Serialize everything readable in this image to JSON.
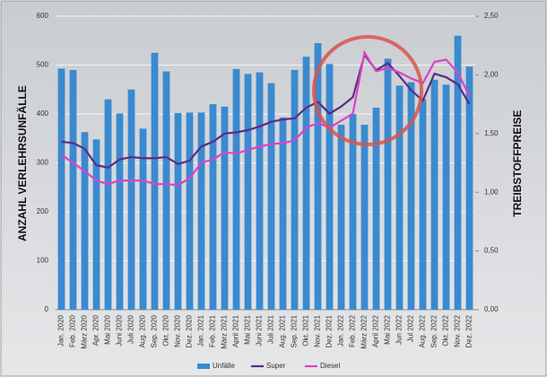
{
  "chart_data": {
    "type": "bar_line",
    "categories": [
      "Jan. 2020",
      "Feb. 2020",
      "März 2020",
      "Apr. 2020",
      "Mai 2020",
      "Juni 2020",
      "Juli 2020",
      "Aug. 2020",
      "Sep. 2020",
      "Okt. 2020",
      "Nov. 2020",
      "Dez. 2020",
      "Jan. 2021",
      "Feb. 2021",
      "März 2021",
      "April 2021",
      "Mai 2021",
      "Juni 2021",
      "Juli 2021",
      "Aug. 2021",
      "Sep. 2021",
      "Okt. 2021",
      "Nov. 2021",
      "Dez. 2021",
      "Jan. 2022",
      "Feb. 2022",
      "März 2022",
      "April 2022",
      "Mai 2022",
      "Jun 2022",
      "Jul 2022",
      "Aug. 2022",
      "Sep. 2022",
      "Okt. 2022",
      "Nov. 2022",
      "Dez. 2022"
    ],
    "series": [
      {
        "name": "Unfälle",
        "color": "#3a8ad0",
        "kind": "bar",
        "values": [
          493,
          490,
          363,
          348,
          430,
          401,
          450,
          370,
          525,
          487,
          402,
          403,
          403,
          420,
          415,
          492,
          482,
          485,
          463,
          393,
          490,
          517,
          545,
          502,
          378,
          400,
          378,
          413,
          513,
          458,
          465,
          430,
          470,
          460,
          560,
          497
        ]
      },
      {
        "name": "Super",
        "color": "#5b2c83",
        "kind": "line",
        "axis": "y2",
        "values": [
          1.43,
          1.42,
          1.37,
          1.23,
          1.21,
          1.28,
          1.3,
          1.29,
          1.29,
          1.3,
          1.24,
          1.27,
          1.39,
          1.43,
          1.5,
          1.51,
          1.53,
          1.56,
          1.6,
          1.62,
          1.63,
          1.72,
          1.77,
          1.67,
          1.73,
          1.81,
          2.17,
          2.04,
          2.1,
          1.99,
          1.87,
          1.78,
          2.01,
          1.98,
          1.92,
          1.75
        ]
      },
      {
        "name": "Diesel",
        "color": "#e040c8",
        "kind": "line",
        "axis": "y2",
        "values": [
          1.32,
          1.25,
          1.18,
          1.1,
          1.07,
          1.1,
          1.1,
          1.1,
          1.07,
          1.07,
          1.06,
          1.12,
          1.25,
          1.28,
          1.34,
          1.33,
          1.36,
          1.39,
          1.41,
          1.42,
          1.44,
          1.55,
          1.59,
          1.55,
          1.61,
          1.67,
          2.19,
          2.03,
          2.06,
          2.02,
          1.97,
          1.93,
          2.11,
          2.13,
          2.02,
          1.82
        ]
      }
    ],
    "y_label": "ANZAHL VERLEHRSUNFÄLLE",
    "y2_label": "TREIBSTOFFPREISE",
    "ylim": [
      0,
      600
    ],
    "yticks": [
      0,
      100,
      200,
      300,
      400,
      500,
      600
    ],
    "y2lim": [
      0,
      2.5
    ],
    "y2ticks": [
      {
        "value": 0,
        "label": "0,00"
      },
      {
        "value": 0.5,
        "label": "0,50"
      },
      {
        "value": 1,
        "label": "1,00"
      },
      {
        "value": 1.5,
        "label": "1,50"
      },
      {
        "value": 2,
        "label": "2,00"
      },
      {
        "value": 2.5,
        "label": "2,50"
      }
    ],
    "grid": true,
    "legend": "bottom"
  }
}
